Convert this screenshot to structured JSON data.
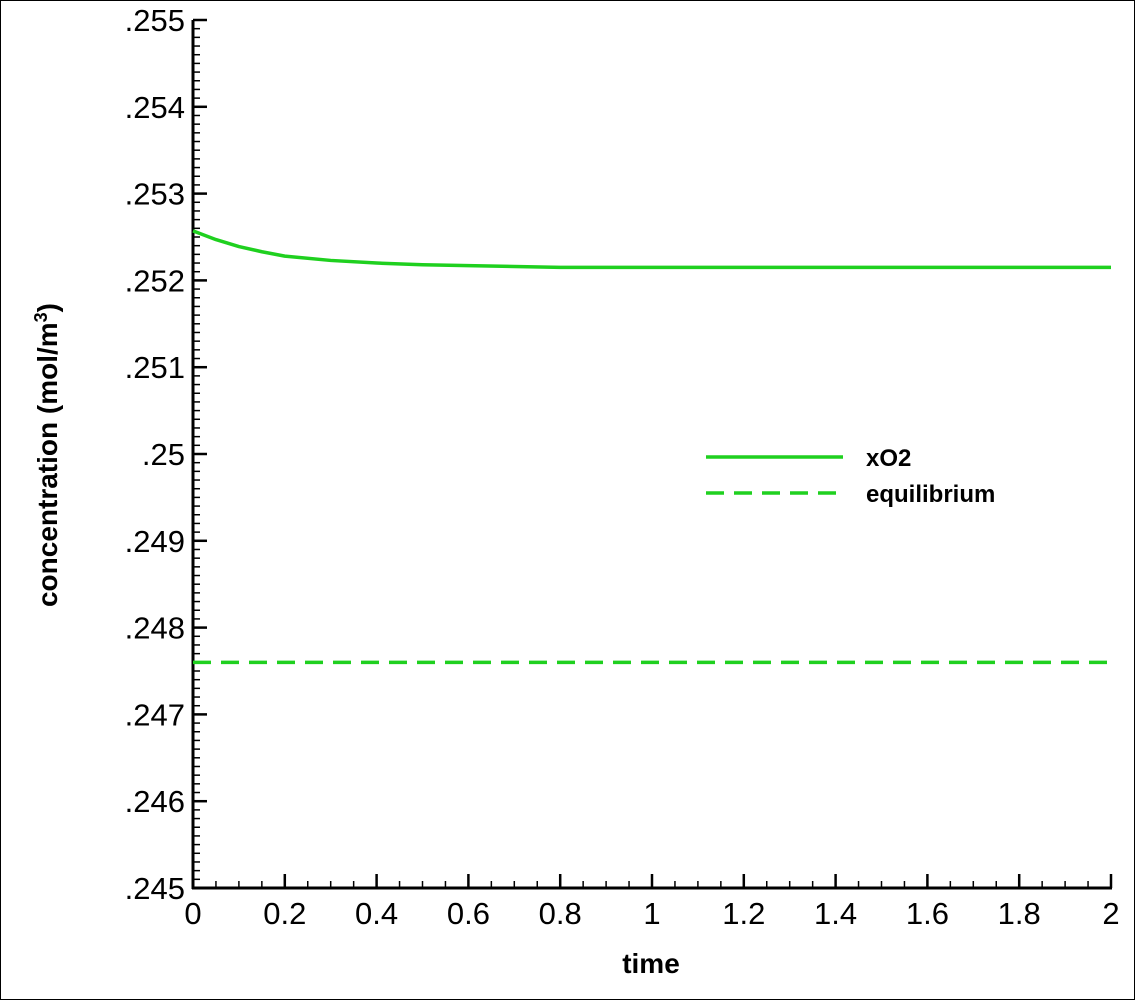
{
  "chart_data": {
    "type": "line",
    "title": "",
    "xlabel": "time",
    "ylabel": "concentration (mol/m",
    "ylabel_superscript": "3",
    "ylabel_close": ")",
    "xlim": [
      0,
      2
    ],
    "ylim": [
      0.245,
      0.255
    ],
    "x_ticks": [
      0,
      0.2,
      0.4,
      0.6,
      0.8,
      1,
      1.2,
      1.4,
      1.6,
      1.8,
      2
    ],
    "x_tick_labels": [
      "0",
      "0.2",
      "0.4",
      "0.6",
      "0.8",
      "1",
      "1.2",
      "1.4",
      "1.6",
      "1.8",
      "2"
    ],
    "y_ticks": [
      0.245,
      0.246,
      0.247,
      0.248,
      0.249,
      0.25,
      0.251,
      0.252,
      0.253,
      0.254,
      0.255
    ],
    "y_tick_labels": [
      ".245",
      ".246",
      ".247",
      ".248",
      ".249",
      ".25",
      ".251",
      ".252",
      ".253",
      ".254",
      ".255"
    ],
    "grid": false,
    "legend_position": "center-right",
    "series": [
      {
        "name": "xO2",
        "style": "solid",
        "color": "#1fd01f",
        "x": [
          0,
          0.05,
          0.1,
          0.15,
          0.2,
          0.3,
          0.4,
          0.5,
          0.6,
          0.7,
          0.8,
          1.0,
          1.2,
          1.4,
          1.6,
          1.8,
          2.0
        ],
        "y": [
          0.25257,
          0.25247,
          0.25239,
          0.25233,
          0.25228,
          0.25223,
          0.2522,
          0.25218,
          0.25217,
          0.25216,
          0.25215,
          0.25215,
          0.25215,
          0.25215,
          0.25215,
          0.25215,
          0.25215
        ]
      },
      {
        "name": "equilibrium",
        "style": "dashed",
        "color": "#1fd01f",
        "x": [
          0,
          2
        ],
        "y": [
          0.2476,
          0.2476
        ]
      }
    ]
  }
}
